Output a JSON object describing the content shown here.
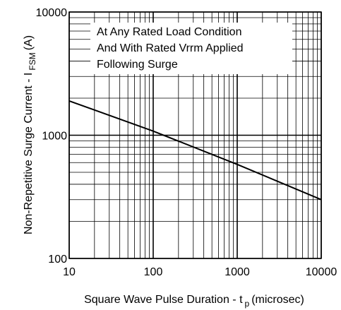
{
  "chart_data": {
    "type": "line",
    "title": "",
    "xlabel": "Square Wave Pulse Duration - t",
    "xlabel_sub": "p",
    "xlabel_unit": "(microsec)",
    "ylabel": "Non-Repetitive Surge Current - I",
    "ylabel_sub": "FSM",
    "ylabel_unit": "(A)",
    "x_scale": "log",
    "y_scale": "log",
    "xlim": [
      10,
      10000
    ],
    "ylim": [
      100,
      10000
    ],
    "x_ticks": [
      10,
      100,
      1000,
      10000
    ],
    "y_ticks": [
      100,
      1000,
      10000
    ],
    "x_tick_labels": [
      "10",
      "100",
      "1000",
      "10000"
    ],
    "y_tick_labels": [
      "100",
      "1000",
      "10000"
    ],
    "grid": true,
    "series": [
      {
        "x": [
          10,
          100,
          1000,
          10000
        ],
        "y": [
          1900,
          1080,
          580,
          300
        ]
      }
    ],
    "annotation": {
      "lines": [
        "At Any Rated Load Condition",
        "And With Rated Vrrm Applied",
        "Following Surge"
      ],
      "placement": "top-right"
    },
    "colors": {
      "line": "#000000",
      "grid": "#000000",
      "background": "#ffffff"
    }
  }
}
